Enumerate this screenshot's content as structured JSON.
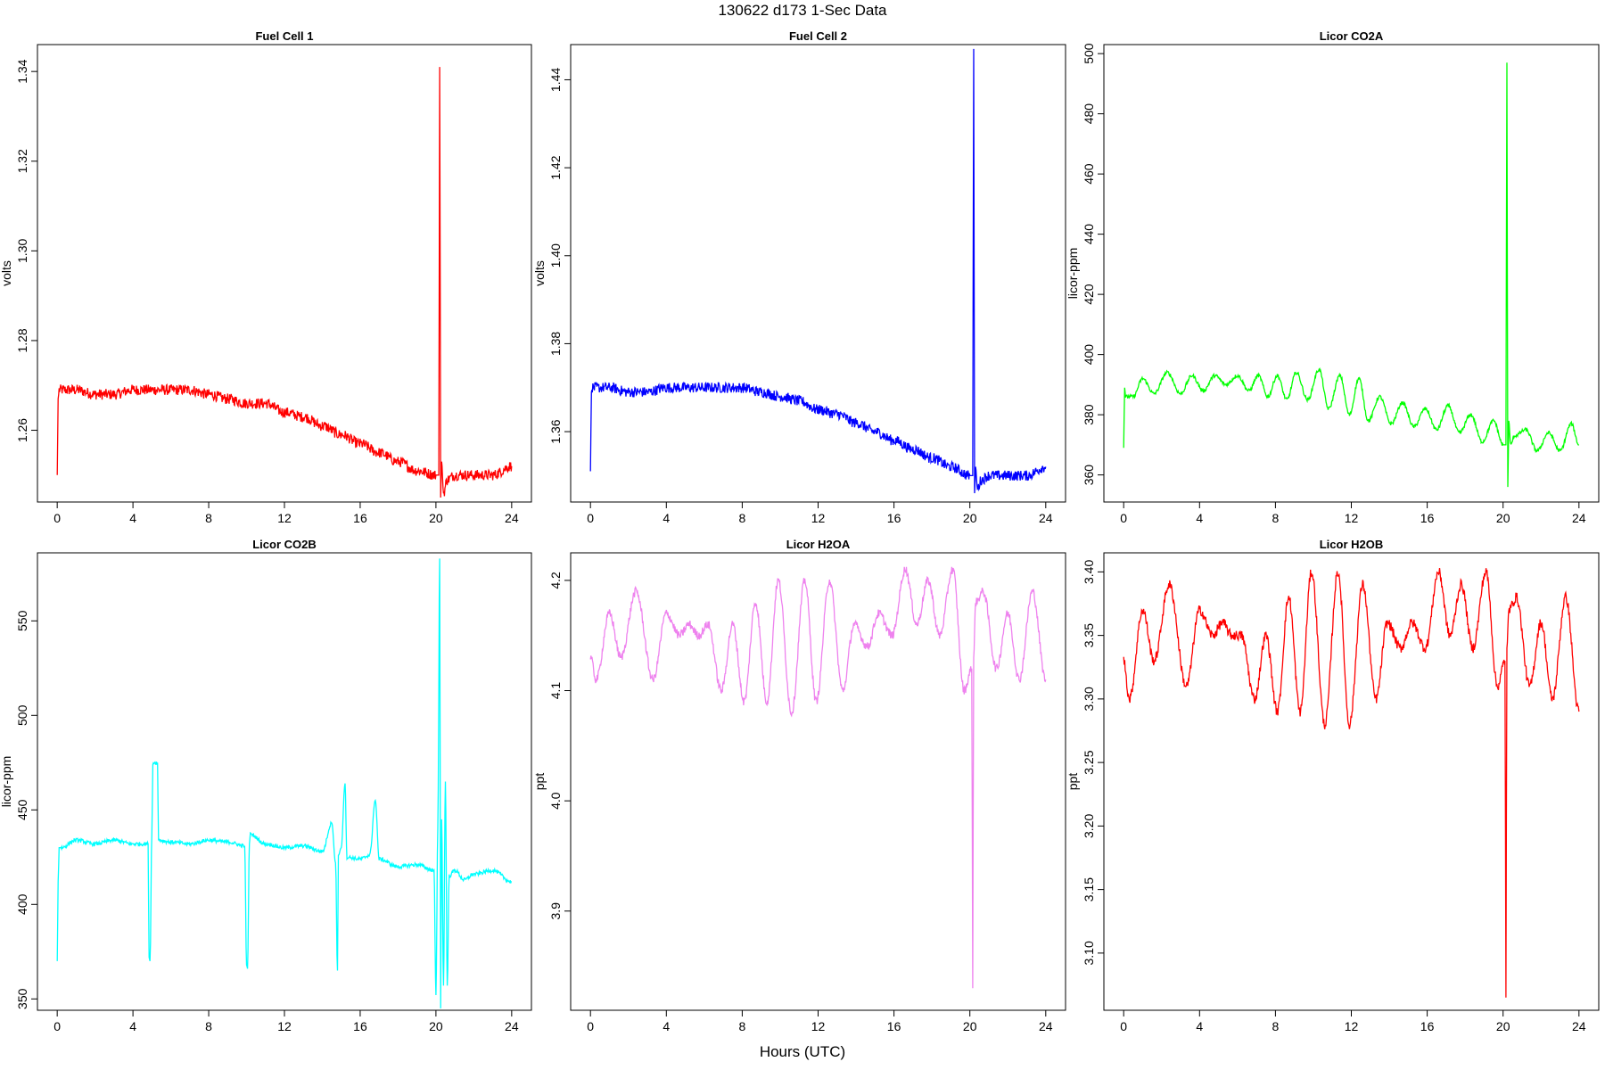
{
  "figure": {
    "title": "130622   d173   1-Sec Data",
    "xlabel": "Hours (UTC)"
  },
  "chart_data": [
    {
      "type": "line",
      "title": "Fuel Cell 1",
      "ylabel": "volts",
      "color": "#ff0000",
      "xlim": [
        0,
        24
      ],
      "ylim": [
        1.244,
        1.346
      ],
      "xticks": [
        "0",
        "4",
        "8",
        "12",
        "16",
        "20",
        "24"
      ],
      "yticks": [
        "1.26",
        "1.28",
        "1.30",
        "1.32",
        "1.34"
      ],
      "series": [
        {
          "x": [
            0,
            0.05,
            0.1,
            1,
            2,
            3,
            4,
            5,
            6,
            7,
            8,
            9,
            10,
            11,
            12,
            13,
            14,
            15,
            16,
            17,
            18,
            19,
            20,
            20.15,
            20.2,
            20.25,
            20.3,
            20.4,
            20.6,
            21,
            22,
            23,
            24
          ],
          "y": [
            1.25,
            1.267,
            1.269,
            1.269,
            1.268,
            1.268,
            1.269,
            1.269,
            1.269,
            1.269,
            1.268,
            1.267,
            1.266,
            1.266,
            1.264,
            1.263,
            1.261,
            1.259,
            1.257,
            1.255,
            1.253,
            1.251,
            1.25,
            1.25,
            1.341,
            1.245,
            1.253,
            1.246,
            1.249,
            1.25,
            1.25,
            1.25,
            1.252
          ],
          "noise": 0.0012
        }
      ]
    },
    {
      "type": "line",
      "title": "Fuel Cell 2",
      "ylabel": "volts",
      "color": "#0000ff",
      "xlim": [
        0,
        24
      ],
      "ylim": [
        1.344,
        1.448
      ],
      "xticks": [
        "0",
        "4",
        "8",
        "12",
        "16",
        "20",
        "24"
      ],
      "yticks": [
        "1.36",
        "1.38",
        "1.40",
        "1.42",
        "1.44"
      ],
      "series": [
        {
          "x": [
            0,
            0.05,
            0.1,
            1,
            2,
            3,
            4,
            5,
            6,
            7,
            8,
            9,
            10,
            11,
            12,
            13,
            14,
            15,
            16,
            17,
            18,
            19,
            20,
            20.15,
            20.2,
            20.25,
            20.3,
            20.4,
            20.6,
            21,
            22,
            23,
            24
          ],
          "y": [
            1.351,
            1.369,
            1.37,
            1.37,
            1.369,
            1.369,
            1.37,
            1.37,
            1.37,
            1.37,
            1.37,
            1.369,
            1.368,
            1.367,
            1.365,
            1.364,
            1.362,
            1.36,
            1.358,
            1.356,
            1.354,
            1.352,
            1.35,
            1.35,
            1.447,
            1.346,
            1.352,
            1.347,
            1.349,
            1.35,
            1.35,
            1.35,
            1.352
          ],
          "noise": 0.0012
        }
      ]
    },
    {
      "type": "line",
      "title": "Licor CO2A",
      "ylabel": "licor-ppm",
      "color": "#00ff00",
      "xlim": [
        0,
        24
      ],
      "ylim": [
        351,
        503
      ],
      "xticks": [
        "0",
        "4",
        "8",
        "12",
        "16",
        "20",
        "24"
      ],
      "yticks": [
        "360",
        "380",
        "400",
        "420",
        "440",
        "460",
        "480",
        "500"
      ],
      "series": [
        {
          "x": [
            0,
            0.05,
            0.1,
            0.5,
            1,
            1.6,
            2.3,
            3,
            3.6,
            4.2,
            4.8,
            5.4,
            6,
            6.6,
            7.1,
            7.6,
            8.1,
            8.6,
            9.1,
            9.7,
            10.3,
            10.8,
            11.4,
            11.9,
            12.4,
            12.9,
            13.5,
            14.1,
            14.7,
            15.3,
            15.9,
            16.5,
            17.1,
            17.7,
            18.3,
            18.9,
            19.5,
            20,
            20.15,
            20.2,
            20.25,
            20.3,
            20.4,
            20.6,
            21.2,
            21.8,
            22.4,
            23,
            23.6,
            24
          ],
          "y": [
            369,
            389,
            386,
            386,
            392,
            387,
            394,
            387,
            393,
            388,
            393,
            390,
            393,
            388,
            393,
            386,
            393,
            385,
            394,
            385,
            395,
            382,
            393,
            380,
            392,
            378,
            386,
            377,
            384,
            376,
            382,
            375,
            383,
            374,
            380,
            371,
            378,
            370,
            370,
            497,
            356,
            378,
            370,
            373,
            375,
            368,
            374,
            368,
            377,
            370
          ],
          "noise": 0.6
        }
      ]
    },
    {
      "type": "line",
      "title": "Licor CO2B",
      "ylabel": "licor-ppm",
      "color": "#00ffff",
      "xlim": [
        0,
        24
      ],
      "ylim": [
        344,
        586
      ],
      "xticks": [
        "0",
        "4",
        "8",
        "12",
        "16",
        "20",
        "24"
      ],
      "yticks": [
        "350",
        "400",
        "450",
        "500",
        "550"
      ],
      "series": [
        {
          "x": [
            0,
            0.05,
            0.1,
            0.2,
            1,
            2,
            3,
            4,
            4.8,
            4.85,
            4.9,
            5,
            5.05,
            5.3,
            5.35,
            6,
            7,
            8,
            9,
            9.9,
            10,
            10.05,
            10.15,
            10.2,
            11,
            12,
            13,
            14,
            14.5,
            14.7,
            14.8,
            14.85,
            15,
            15.2,
            15.3,
            16,
            16.5,
            16.8,
            17,
            18,
            19,
            19.9,
            20,
            20.1,
            20.2,
            20.25,
            20.3,
            20.4,
            20.5,
            20.6,
            20.7,
            21,
            21.5,
            22,
            23,
            24
          ],
          "y": [
            370,
            412,
            430,
            430,
            434,
            432,
            434,
            432,
            432,
            372,
            370,
            437,
            475,
            475,
            434,
            433,
            432,
            434,
            433,
            431,
            368,
            366,
            432,
            437,
            432,
            430,
            431,
            428,
            443,
            422,
            365,
            426,
            430,
            464,
            425,
            424,
            426,
            455,
            424,
            420,
            421,
            418,
            352,
            440,
            583,
            345,
            445,
            357,
            465,
            357,
            415,
            418,
            413,
            416,
            418,
            412
          ],
          "noise": 1.0
        }
      ]
    },
    {
      "type": "line",
      "title": "Licor H2OA",
      "ylabel": "ppt",
      "color": "#ee82ee",
      "xlim": [
        0,
        24
      ],
      "ylim": [
        3.81,
        4.225
      ],
      "xticks": [
        "0",
        "4",
        "8",
        "12",
        "16",
        "20",
        "24"
      ],
      "yticks": [
        "3.9",
        "4.0",
        "4.1",
        "4.2"
      ],
      "series": [
        {
          "x": [
            0,
            0.3,
            1,
            1.6,
            2.4,
            3.3,
            4,
            4.7,
            5.2,
            5.7,
            6.2,
            6.9,
            7.5,
            8.1,
            8.7,
            9.3,
            9.9,
            10.6,
            11.3,
            11.9,
            12.6,
            13.3,
            13.9,
            14.6,
            15.2,
            15.9,
            16.6,
            17.2,
            17.8,
            18.4,
            19.1,
            19.7,
            20.1,
            20.15,
            20.2,
            20.3,
            20.7,
            21.4,
            22,
            22.6,
            23.3,
            24
          ],
          "y": [
            4.13,
            4.11,
            4.17,
            4.13,
            4.19,
            4.11,
            4.17,
            4.15,
            4.16,
            4.15,
            4.16,
            4.1,
            4.16,
            4.09,
            4.18,
            4.09,
            4.2,
            4.08,
            4.2,
            4.09,
            4.2,
            4.1,
            4.16,
            4.14,
            4.17,
            4.15,
            4.21,
            4.16,
            4.2,
            4.15,
            4.21,
            4.1,
            4.12,
            3.83,
            4.13,
            4.18,
            4.19,
            4.12,
            4.17,
            4.11,
            4.19,
            4.11
          ],
          "noise": 0.004
        }
      ]
    },
    {
      "type": "line",
      "title": "Licor H2OB",
      "ylabel": "ppt",
      "color": "#ff0000",
      "xlim": [
        0,
        24
      ],
      "ylim": [
        3.055,
        3.415
      ],
      "xticks": [
        "0",
        "4",
        "8",
        "12",
        "16",
        "20",
        "24"
      ],
      "yticks": [
        "3.10",
        "3.15",
        "3.20",
        "3.25",
        "3.30",
        "3.35",
        "3.40"
      ],
      "series": [
        {
          "x": [
            0,
            0.3,
            1,
            1.6,
            2.4,
            3.3,
            4,
            4.7,
            5.2,
            5.7,
            6.2,
            6.9,
            7.5,
            8.1,
            8.7,
            9.3,
            9.9,
            10.6,
            11.3,
            11.9,
            12.6,
            13.3,
            13.9,
            14.6,
            15.2,
            15.9,
            16.6,
            17.2,
            17.8,
            18.4,
            19.1,
            19.7,
            20.1,
            20.15,
            20.2,
            20.3,
            20.7,
            21.4,
            22,
            22.6,
            23.3,
            24
          ],
          "y": [
            3.33,
            3.3,
            3.37,
            3.33,
            3.39,
            3.31,
            3.37,
            3.35,
            3.36,
            3.35,
            3.35,
            3.3,
            3.35,
            3.29,
            3.38,
            3.29,
            3.4,
            3.28,
            3.4,
            3.28,
            3.39,
            3.3,
            3.36,
            3.34,
            3.36,
            3.34,
            3.4,
            3.35,
            3.39,
            3.34,
            3.4,
            3.31,
            3.33,
            3.065,
            3.34,
            3.37,
            3.38,
            3.31,
            3.36,
            3.3,
            3.38,
            3.29
          ],
          "noise": 0.004
        }
      ]
    }
  ]
}
